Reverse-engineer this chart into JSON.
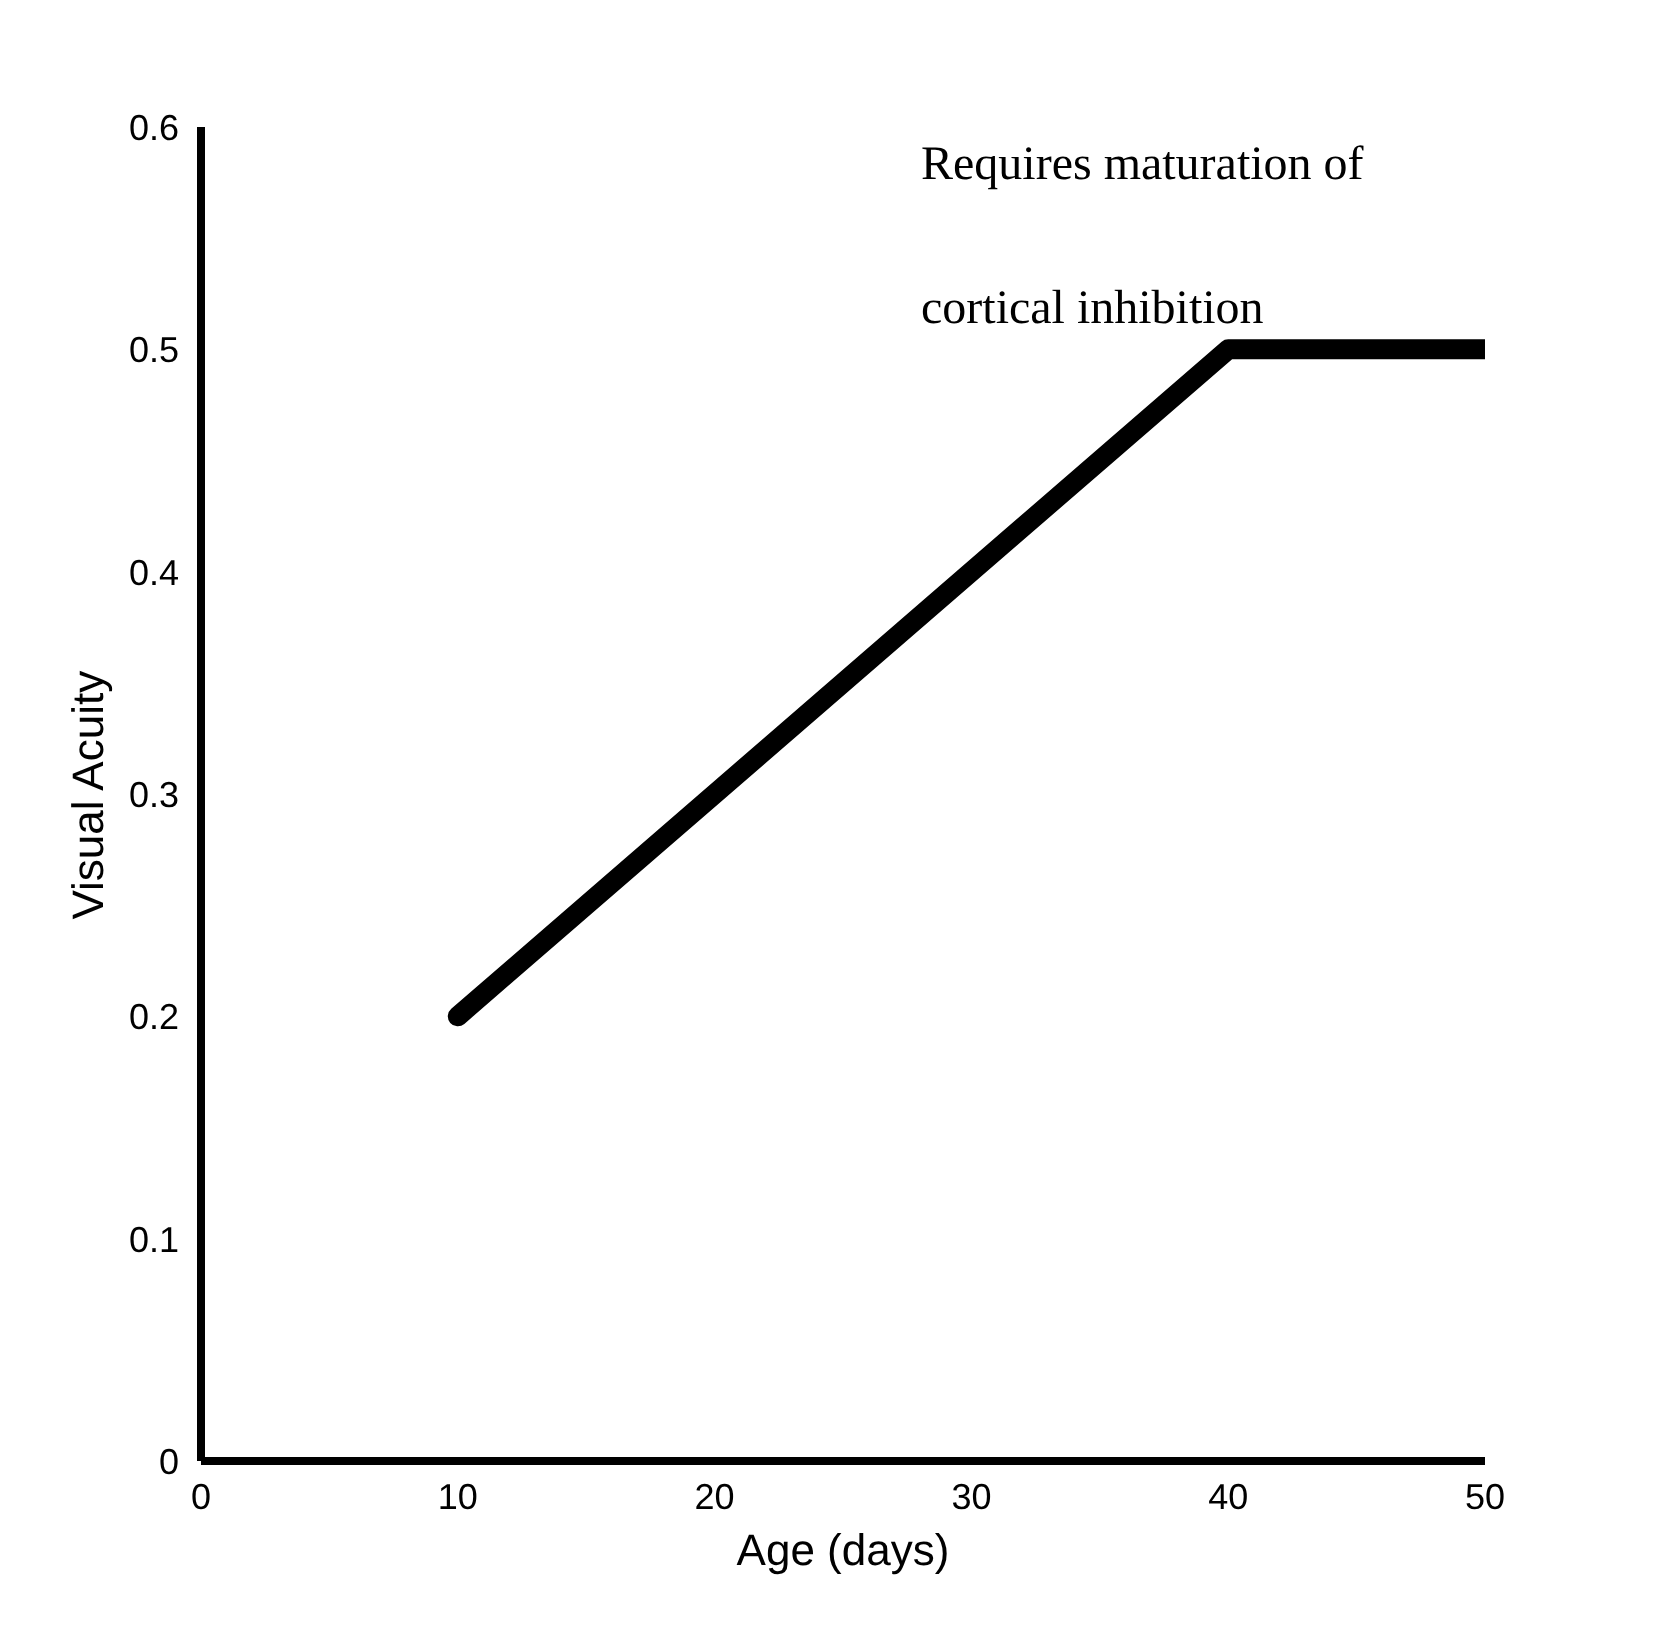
{
  "chart_data": {
    "type": "line",
    "xlabel": "Age (days)",
    "ylabel": "Visual Acuity",
    "x": [
      10,
      40,
      50
    ],
    "series": [
      {
        "color": "#000000",
        "values": [
          0.2,
          0.5,
          0.5
        ]
      }
    ],
    "xlim": [
      0,
      50
    ],
    "xticks": [
      0,
      10,
      20,
      30,
      40,
      50
    ],
    "ylim": [
      0,
      0.6
    ],
    "yticks": [
      0,
      0.1,
      0.2,
      0.3,
      0.4,
      0.5,
      0.6
    ],
    "grid": false,
    "marker": "none",
    "line_style": "solid",
    "annotations": [
      "Requires maturation of",
      "cortical inhibition"
    ]
  }
}
